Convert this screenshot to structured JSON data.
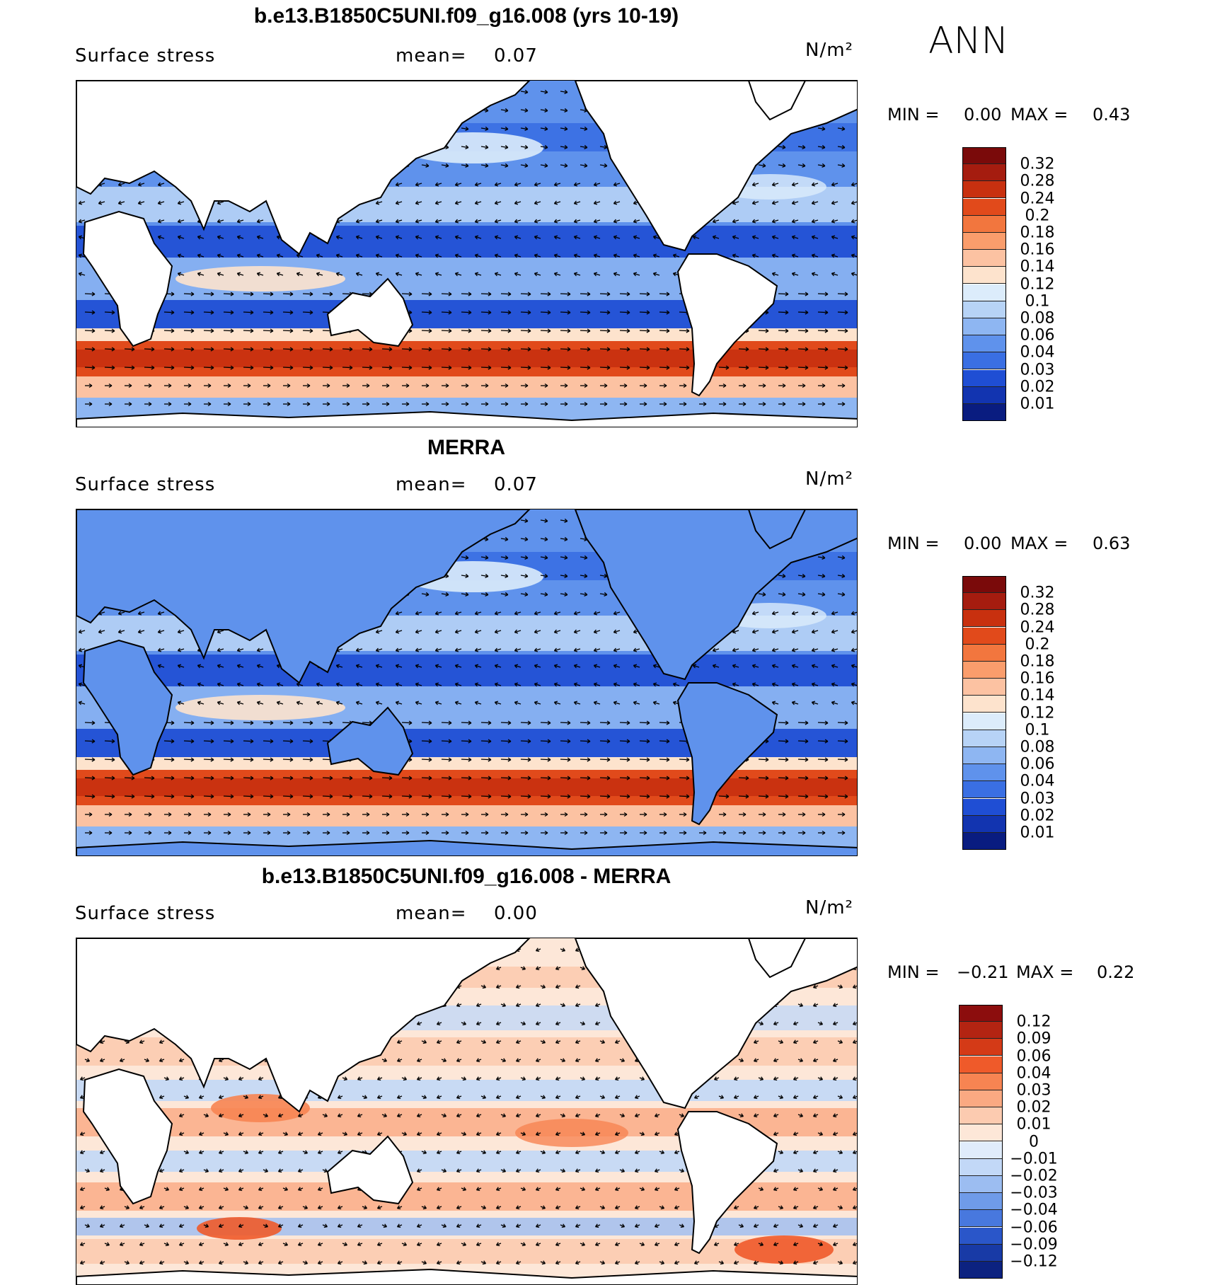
{
  "season": "ANN",
  "panels": [
    {
      "title": "b.e13.B1850C5UNI.f09_g16.008 (yrs 10-19)",
      "variable": "Surface stress",
      "mean_label": "mean=",
      "mean_value": "0.07",
      "units": "N/m²",
      "min_label": "MIN =",
      "min_value": "0.00",
      "max_label": "MAX =",
      "max_value": "0.43",
      "colorbar": [
        "0.32",
        "0.28",
        "0.24",
        "0.2",
        "0.18",
        "0.16",
        "0.14",
        "0.12",
        "0.1",
        "0.08",
        "0.06",
        "0.04",
        "0.03",
        "0.02",
        "0.01"
      ],
      "colors": [
        "#7a0a0a",
        "#a51c0f",
        "#c8300f",
        "#e14a1b",
        "#f2763e",
        "#fa9d6c",
        "#fcc2a2",
        "#fde3cd",
        "#dcecfb",
        "#b7d3f6",
        "#8eb6f2",
        "#5f92ec",
        "#3a6fe3",
        "#1f4ed4",
        "#1234b0",
        "#091c80"
      ]
    },
    {
      "title": "MERRA",
      "variable": "Surface stress",
      "mean_label": "mean=",
      "mean_value": "0.07",
      "units": "N/m²",
      "min_label": "MIN =",
      "min_value": "0.00",
      "max_label": "MAX =",
      "max_value": "0.63",
      "colorbar": [
        "0.32",
        "0.28",
        "0.24",
        "0.2",
        "0.18",
        "0.16",
        "0.14",
        "0.12",
        "0.1",
        "0.08",
        "0.06",
        "0.04",
        "0.03",
        "0.02",
        "0.01"
      ],
      "colors": [
        "#7a0a0a",
        "#a51c0f",
        "#c8300f",
        "#e14a1b",
        "#f2763e",
        "#fa9d6c",
        "#fcc2a2",
        "#fde3cd",
        "#dcecfb",
        "#b7d3f6",
        "#8eb6f2",
        "#5f92ec",
        "#3a6fe3",
        "#1f4ed4",
        "#1234b0",
        "#091c80"
      ]
    },
    {
      "title": "b.e13.B1850C5UNI.f09_g16.008 - MERRA",
      "variable": "Surface stress",
      "mean_label": "mean=",
      "mean_value": "0.00",
      "units": "N/m²",
      "min_label": "MIN =",
      "min_value": "−0.21",
      "max_label": "MAX =",
      "max_value": "0.22",
      "colorbar": [
        "0.12",
        "0.09",
        "0.06",
        "0.04",
        "0.03",
        "0.02",
        "0.01",
        "0",
        "−0.01",
        "−0.02",
        "−0.03",
        "−0.04",
        "−0.06",
        "−0.09",
        "−0.12"
      ],
      "colors": [
        "#8c0d0d",
        "#b32412",
        "#d43a17",
        "#ef5a2a",
        "#f78452",
        "#faa982",
        "#fccbb0",
        "#fde7d8",
        "#e0ecfb",
        "#c2d8f7",
        "#9cbdf1",
        "#6f9be9",
        "#4878de",
        "#2a56c9",
        "#183aa6",
        "#0c2280"
      ]
    }
  ]
}
